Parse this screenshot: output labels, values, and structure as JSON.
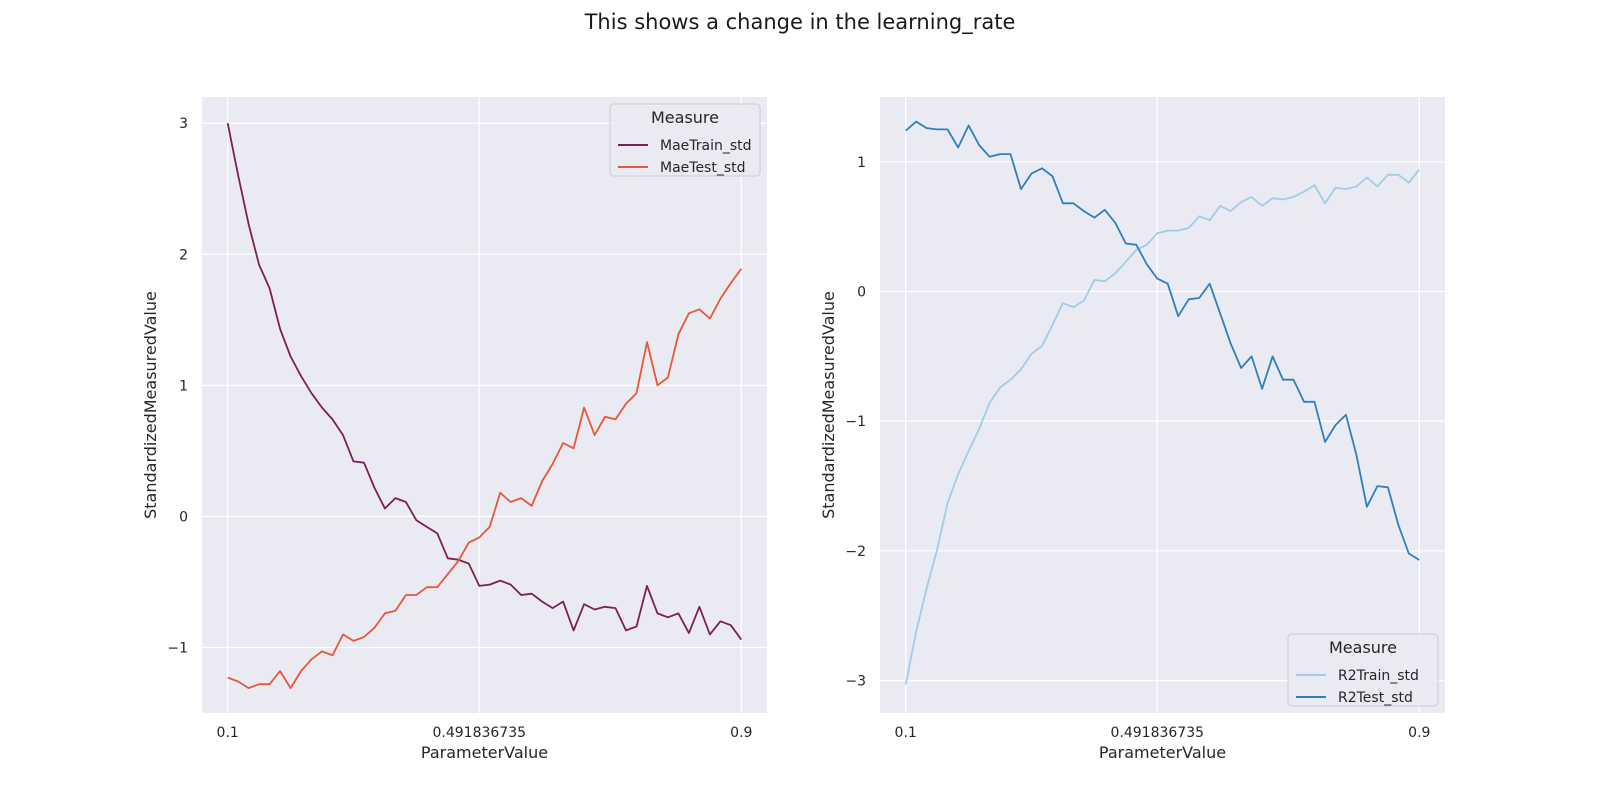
{
  "title": "This shows a change in the learning_rate",
  "chart_data": [
    {
      "type": "line",
      "xlabel": "ParameterValue",
      "ylabel": "StandardizedMeasuredValue",
      "xticks": [
        "0.1",
        "0.491836735",
        "0.9"
      ],
      "xtick_values": [
        0.1,
        0.491836735,
        0.9
      ],
      "yticks": [
        3,
        2,
        1,
        0,
        -1
      ],
      "ytick_labels": [
        "3",
        "2",
        "1",
        "0",
        "−1"
      ],
      "xlim": [
        0.06,
        0.94
      ],
      "ylim": [
        -1.5,
        3.2
      ],
      "grid": true,
      "legend": {
        "title": "Measure",
        "placement": "top-right"
      },
      "series": [
        {
          "name": "MaeTrain_std",
          "color": "#7f1e57",
          "values": [
            3.0,
            2.6,
            2.23,
            1.92,
            1.74,
            1.43,
            1.22,
            1.07,
            0.94,
            0.83,
            0.74,
            0.62,
            0.42,
            0.41,
            0.22,
            0.06,
            0.14,
            0.11,
            -0.03,
            -0.08,
            -0.13,
            -0.32,
            -0.33,
            -0.36,
            -0.53,
            -0.52,
            -0.49,
            -0.52,
            -0.6,
            -0.59,
            -0.65,
            -0.7,
            -0.65,
            -0.87,
            -0.67,
            -0.71,
            -0.69,
            -0.7,
            -0.87,
            -0.84,
            -0.53,
            -0.74,
            -0.77,
            -0.74,
            -0.89,
            -0.69,
            -0.9,
            -0.8,
            -0.83,
            -0.94
          ]
        },
        {
          "name": "MaeTest_std",
          "color": "#e8573d",
          "values": [
            -1.23,
            -1.26,
            -1.31,
            -1.28,
            -1.28,
            -1.18,
            -1.31,
            -1.18,
            -1.09,
            -1.03,
            -1.06,
            -0.9,
            -0.95,
            -0.92,
            -0.85,
            -0.74,
            -0.72,
            -0.6,
            -0.6,
            -0.54,
            -0.54,
            -0.44,
            -0.34,
            -0.2,
            -0.16,
            -0.08,
            0.18,
            0.11,
            0.14,
            0.08,
            0.27,
            0.4,
            0.56,
            0.52,
            0.83,
            0.62,
            0.76,
            0.74,
            0.86,
            0.94,
            1.33,
            1.0,
            1.06,
            1.39,
            1.55,
            1.58,
            1.51,
            1.66,
            1.78,
            1.89
          ]
        }
      ]
    },
    {
      "type": "line",
      "xlabel": "ParameterValue",
      "ylabel": "StandardizedMeasuredValue",
      "xticks": [
        "0.1",
        "0.491836735",
        "0.9"
      ],
      "xtick_values": [
        0.1,
        0.491836735,
        0.9
      ],
      "yticks": [
        1,
        0,
        -1,
        -2,
        -3
      ],
      "ytick_labels": [
        "1",
        "0",
        "−1",
        "−2",
        "−3"
      ],
      "xlim": [
        0.06,
        0.94
      ],
      "ylim": [
        -3.25,
        1.5
      ],
      "grid": true,
      "legend": {
        "title": "Measure",
        "placement": "bottom-right"
      },
      "series": [
        {
          "name": "R2Train_std",
          "color": "#a3cbe6",
          "values": [
            -3.03,
            -2.62,
            -2.29,
            -1.99,
            -1.63,
            -1.41,
            -1.23,
            -1.06,
            -0.86,
            -0.74,
            -0.68,
            -0.6,
            -0.48,
            -0.42,
            -0.26,
            -0.09,
            -0.12,
            -0.07,
            0.09,
            0.08,
            0.14,
            0.23,
            0.32,
            0.36,
            0.45,
            0.47,
            0.47,
            0.49,
            0.58,
            0.55,
            0.66,
            0.62,
            0.69,
            0.73,
            0.66,
            0.72,
            0.71,
            0.73,
            0.77,
            0.82,
            0.68,
            0.8,
            0.79,
            0.81,
            0.88,
            0.81,
            0.9,
            0.9,
            0.84,
            0.94
          ]
        },
        {
          "name": "R2Test_std",
          "color": "#2f7fbf",
          "values": [
            1.24,
            1.31,
            1.26,
            1.25,
            1.25,
            1.11,
            1.28,
            1.13,
            1.04,
            1.06,
            1.06,
            0.79,
            0.91,
            0.95,
            0.89,
            0.68,
            0.68,
            0.62,
            0.57,
            0.63,
            0.53,
            0.37,
            0.36,
            0.21,
            0.1,
            0.06,
            -0.19,
            -0.06,
            -0.05,
            0.06,
            -0.17,
            -0.4,
            -0.59,
            -0.5,
            -0.75,
            -0.5,
            -0.68,
            -0.68,
            -0.85,
            -0.85,
            -1.16,
            -1.03,
            -0.95,
            -1.26,
            -1.66,
            -1.5,
            -1.51,
            -1.8,
            -2.02,
            -2.07
          ]
        }
      ]
    }
  ]
}
